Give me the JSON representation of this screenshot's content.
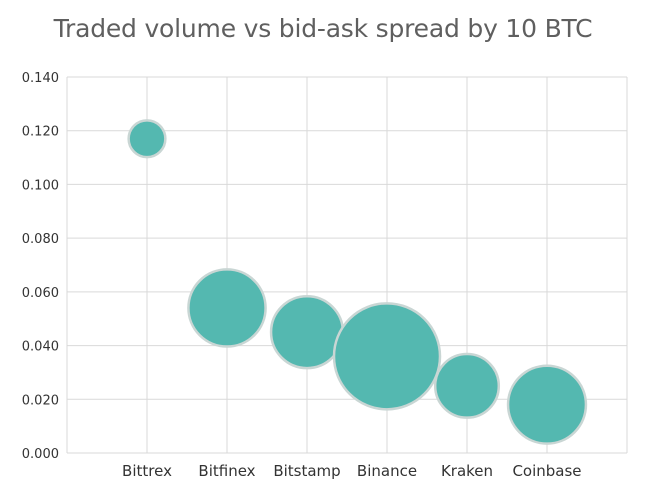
{
  "chart_data": {
    "type": "bubble",
    "title": "Traded volume vs bid-ask spread by 10 BTC",
    "xlabel": "",
    "ylabel": "",
    "categories": [
      "Bittrex",
      "Bitfinex",
      "Bitstamp",
      "Binance",
      "Kraken",
      "Coinbase"
    ],
    "series": [
      {
        "values": [
          0.117,
          0.054,
          0.045,
          0.036,
          0.025,
          0.018
        ],
        "relative_bubble_size": [
          0.12,
          0.53,
          0.46,
          1.0,
          0.36,
          0.54
        ]
      }
    ],
    "ylim": [
      0,
      0.14
    ],
    "yticks": [
      "0.000",
      "0.020",
      "0.040",
      "0.060",
      "0.080",
      "0.100",
      "0.120",
      "0.140"
    ],
    "grid": true,
    "legend": "none",
    "colors": {
      "bubble_fill": "#54b8b0",
      "bubble_stroke": "#c9d6d4",
      "grid": "#d9d9d9",
      "axis_text": "#333333",
      "title": "#5f5f5f"
    }
  }
}
